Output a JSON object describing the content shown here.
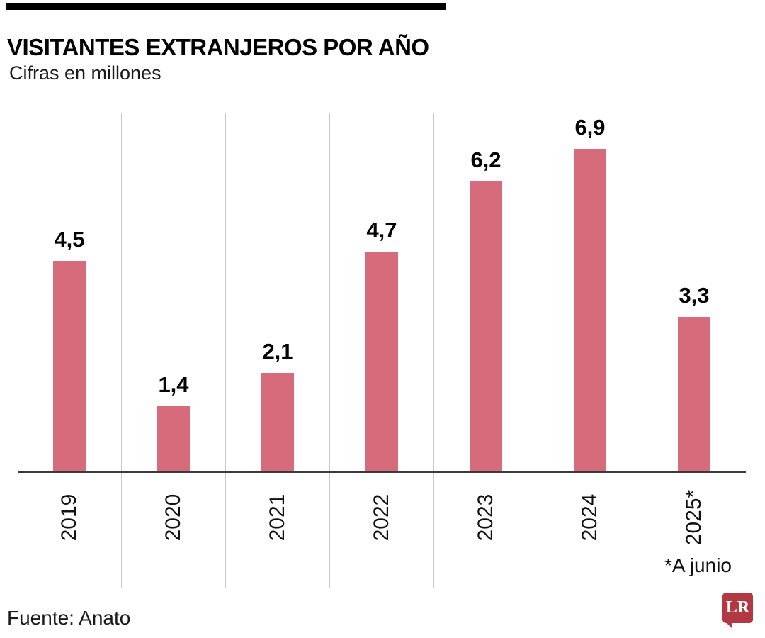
{
  "header": {
    "title": "VISITANTES EXTRANJEROS POR AÑO",
    "subtitle": "Cifras en millones"
  },
  "footer": {
    "source": "Fuente: Anato",
    "logo_text": "LR"
  },
  "chart_data": {
    "type": "bar",
    "title": "VISITANTES EXTRANJEROS POR AÑO",
    "subtitle": "Cifras en millones",
    "categories": [
      "2019",
      "2020",
      "2021",
      "2022",
      "2023",
      "2024",
      "2025*"
    ],
    "values": [
      4.5,
      1.4,
      2.1,
      4.7,
      6.2,
      6.9,
      3.3
    ],
    "value_labels": [
      "4,5",
      "1,4",
      "2,1",
      "4,7",
      "6,2",
      "6,9",
      "3,3"
    ],
    "unit": "millones",
    "note": "*A junio",
    "source": "Fuente: Anato",
    "bar_color": "#d66b7c",
    "grid_color": "#c9c9c9",
    "ylim": [
      0,
      7.6
    ],
    "grid": "vertical-separators-only",
    "legend": "none",
    "x_label_rotation": -90
  }
}
